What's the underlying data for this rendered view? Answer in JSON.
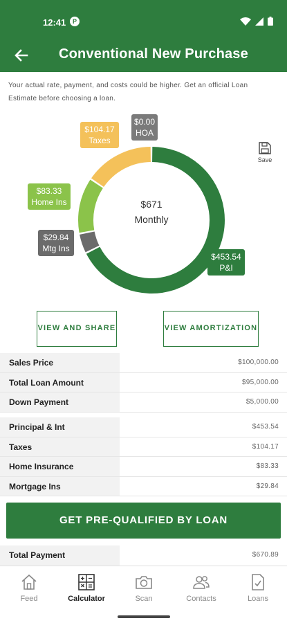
{
  "status": {
    "time": "12:41",
    "app_badge": "P"
  },
  "header": {
    "title": "Conventional New Purchase"
  },
  "disclaimer": "Your actual rate, payment, and costs could be higher. Get an official Loan Estimate before choosing a loan.",
  "chart": {
    "center_amount": "$671",
    "center_label": "Monthly",
    "segments": [
      {
        "key": "pi",
        "amount": "$453.54",
        "label": "P&I",
        "value": 453.54,
        "color": "#2e7d3e"
      },
      {
        "key": "mtg",
        "amount": "$29.84",
        "label": "Mtg Ins",
        "value": 29.84,
        "color": "#6b6b6b"
      },
      {
        "key": "home",
        "amount": "$83.33",
        "label": "Home Ins",
        "value": 83.33,
        "color": "#8bc34a"
      },
      {
        "key": "taxes",
        "amount": "$104.17",
        "label": "Taxes",
        "value": 104.17,
        "color": "#f4c15a"
      },
      {
        "key": "hoa",
        "amount": "$0.00",
        "label": "HOA",
        "value": 0,
        "color": "#7a7a7a"
      }
    ]
  },
  "save_label": "Save",
  "buttons": {
    "view_share": "VIEW AND SHARE",
    "view_amortization": "VIEW AMORTIZATION"
  },
  "loan_rows": [
    {
      "label": "Sales Price",
      "value": "$100,000.00"
    },
    {
      "label": "Total Loan Amount",
      "value": "$95,000.00"
    },
    {
      "label": "Down Payment",
      "value": "$5,000.00"
    }
  ],
  "payment_rows": [
    {
      "label": "Principal & Int",
      "value": "$453.54"
    },
    {
      "label": "Taxes",
      "value": "$104.17"
    },
    {
      "label": "Home Insurance",
      "value": "$83.33"
    },
    {
      "label": "Mortgage Ins",
      "value": "$29.84"
    }
  ],
  "cta": "GET PRE-QUALIFIED BY LOAN",
  "total_row": {
    "label": "Total Payment",
    "value": "$670.89"
  },
  "nav": [
    {
      "label": "Feed",
      "icon": "home-icon"
    },
    {
      "label": "Calculator",
      "icon": "calculator-icon"
    },
    {
      "label": "Scan",
      "icon": "camera-icon"
    },
    {
      "label": "Contacts",
      "icon": "contacts-icon"
    },
    {
      "label": "Loans",
      "icon": "document-icon"
    }
  ],
  "colors": {
    "brand": "#2e7d3e"
  }
}
